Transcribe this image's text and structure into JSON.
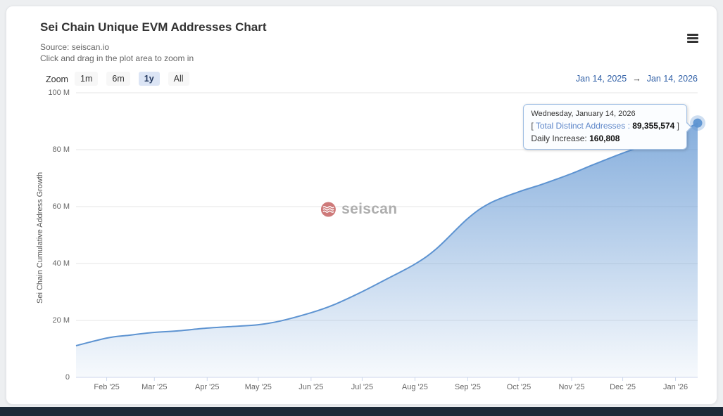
{
  "colors": {
    "page_bg": "#edeff1",
    "footer_bg": "#1d2a38",
    "title_text": "#333333",
    "subtitle_text": "#666666",
    "axis_text": "#666666",
    "grid_line": "#e6e6e6",
    "axis_line": "#ccd6eb",
    "button_bg": "#f7f7f7",
    "selected_zoom_bg": "#dce5f5",
    "selected_zoom_text": "#24395f",
    "link_blue": "#2f5fa6",
    "tooltip_bg": "#fbfdff",
    "tooltip_border": "#a2c0e4",
    "tooltip_series_text": "#5e87c9",
    "watermark_icon": "#c96c6c",
    "watermark_text": "#a6a6a6"
  },
  "header": {
    "title": "Sei Chain Unique EVM Addresses Chart",
    "source_line": "Source: seiscan.io",
    "hint_line": "Click and drag in the plot area to zoom in",
    "menu_icon": "hamburger-icon"
  },
  "toolbar": {
    "zoom_label": "Zoom",
    "buttons": [
      {
        "label": "1m",
        "selected": false
      },
      {
        "label": "6m",
        "selected": false
      },
      {
        "label": "1y",
        "selected": true
      },
      {
        "label": "All",
        "selected": false
      }
    ],
    "range": {
      "from": "Jan 14, 2025",
      "arrow": "→",
      "to": "Jan 14, 2026"
    }
  },
  "tooltip": {
    "date_line": "Wednesday, January 14, 2026",
    "bracket_open": "[",
    "series_label": "Total Distinct Addresses :",
    "series_value": "89,355,574",
    "bracket_close": "]",
    "daily_label": "Daily Increase:",
    "daily_value": "160,808"
  },
  "watermark": {
    "text": "seiscan"
  },
  "chart_data": {
    "type": "area",
    "title": "Sei Chain Unique EVM Addresses Chart",
    "ylabel": "Sei Chain Cumulative Address Growth",
    "xlabel": "",
    "x_range": [
      "2025-01-14",
      "2026-01-14"
    ],
    "ylim": [
      0,
      100000000
    ],
    "grid": "horizontal",
    "legend": false,
    "yticks": [
      {
        "value": 0,
        "label": "0"
      },
      {
        "value": 20000000,
        "label": "20 M"
      },
      {
        "value": 40000000,
        "label": "40 M"
      },
      {
        "value": 60000000,
        "label": "60 M"
      },
      {
        "value": 80000000,
        "label": "80 M"
      },
      {
        "value": 100000000,
        "label": "100 M"
      }
    ],
    "xticks": [
      {
        "date": "2025-02-01",
        "label": "Feb '25"
      },
      {
        "date": "2025-03-01",
        "label": "Mar '25"
      },
      {
        "date": "2025-04-01",
        "label": "Apr '25"
      },
      {
        "date": "2025-05-01",
        "label": "May '25"
      },
      {
        "date": "2025-06-01",
        "label": "Jun '25"
      },
      {
        "date": "2025-07-01",
        "label": "Jul '25"
      },
      {
        "date": "2025-08-01",
        "label": "Aug '25"
      },
      {
        "date": "2025-09-01",
        "label": "Sep '25"
      },
      {
        "date": "2025-10-01",
        "label": "Oct '25"
      },
      {
        "date": "2025-11-01",
        "label": "Nov '25"
      },
      {
        "date": "2025-12-01",
        "label": "Dec '25"
      },
      {
        "date": "2026-01-01",
        "label": "Jan '26"
      }
    ],
    "series": [
      {
        "name": "Total Distinct Addresses",
        "color": "#5d93d1",
        "points": [
          [
            "2025-01-14",
            11100000
          ],
          [
            "2025-02-01",
            13800000
          ],
          [
            "2025-02-14",
            14800000
          ],
          [
            "2025-03-01",
            15800000
          ],
          [
            "2025-03-14",
            16300000
          ],
          [
            "2025-04-01",
            17300000
          ],
          [
            "2025-04-14",
            17800000
          ],
          [
            "2025-05-01",
            18500000
          ],
          [
            "2025-05-14",
            19800000
          ],
          [
            "2025-06-01",
            22700000
          ],
          [
            "2025-06-14",
            25400000
          ],
          [
            "2025-07-01",
            30100000
          ],
          [
            "2025-07-14",
            34100000
          ],
          [
            "2025-08-01",
            39800000
          ],
          [
            "2025-08-14",
            45400000
          ],
          [
            "2025-09-01",
            55800000
          ],
          [
            "2025-09-14",
            61200000
          ],
          [
            "2025-10-01",
            65200000
          ],
          [
            "2025-10-14",
            67700000
          ],
          [
            "2025-11-01",
            71600000
          ],
          [
            "2025-11-14",
            74800000
          ],
          [
            "2025-12-01",
            78800000
          ],
          [
            "2025-12-14",
            81500000
          ],
          [
            "2026-01-01",
            85400000
          ],
          [
            "2026-01-14",
            89355574
          ]
        ]
      }
    ],
    "last_point": {
      "date": "Wednesday, January 14, 2026",
      "total_distinct_addresses": 89355574,
      "daily_increase": 160808
    }
  }
}
